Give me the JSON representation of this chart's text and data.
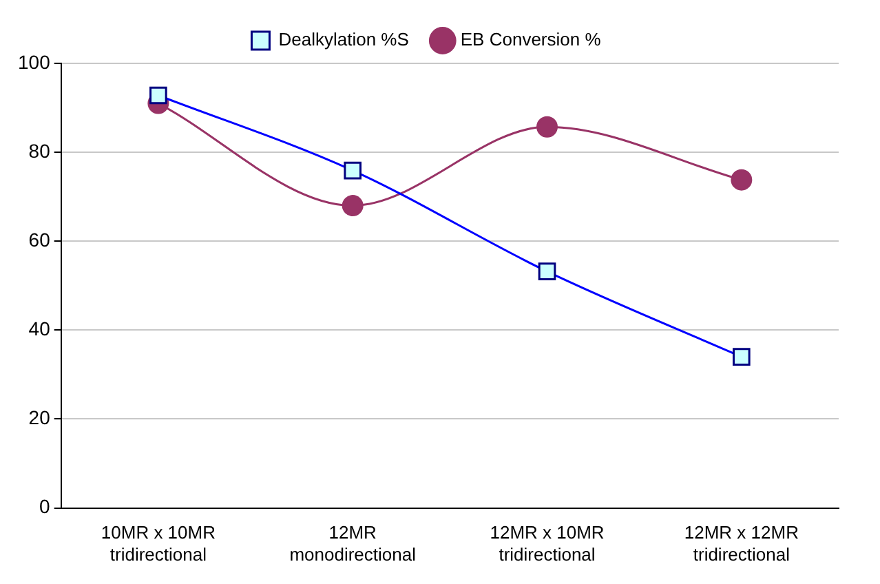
{
  "chart_data": {
    "type": "line",
    "categories": [
      "10MR x 10MR\ntridirectional",
      "12MR\nmonodirectional",
      "12MR x 10MR\ntridirectional",
      "12MR x 12MR\ntridirectional"
    ],
    "series": [
      {
        "name": "EB Conversion %",
        "color": "#993366",
        "marker": "circle",
        "values": [
          91,
          68,
          85.7,
          73.8
        ]
      },
      {
        "name": "Dealkylation %S",
        "color": "#0000ff",
        "marker": "square",
        "values": [
          92.8,
          75.9,
          53.2,
          34
        ]
      }
    ],
    "ylim": [
      0,
      100
    ],
    "yticks": [
      0,
      20,
      40,
      60,
      80,
      100
    ],
    "grid": "y",
    "legend": "top",
    "line_style": "solid"
  }
}
